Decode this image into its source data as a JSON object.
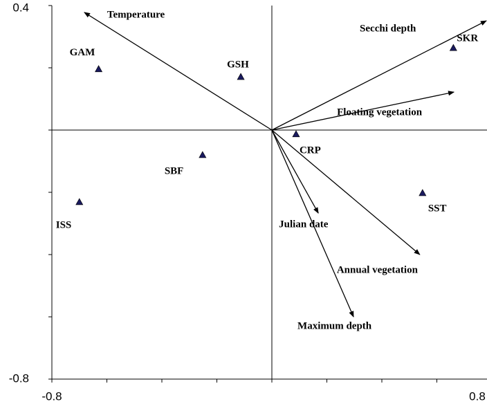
{
  "chart_data": {
    "type": "biplot",
    "xlim": [
      -0.8,
      0.8
    ],
    "ylim": [
      -0.8,
      0.4
    ],
    "xticks": [
      -0.8,
      0.8
    ],
    "yticks": [
      -0.8,
      0.4
    ],
    "points": {
      "labels": [
        "GAM",
        "GSH",
        "SKR",
        "CRP",
        "SBF",
        "SST",
        "ISS"
      ],
      "x": [
        -0.63,
        -0.113,
        0.66,
        0.088,
        -0.252,
        0.548,
        -0.7
      ],
      "y": [
        0.196,
        0.171,
        0.264,
        -0.013,
        -0.08,
        -0.202,
        -0.231
      ],
      "color": "#1a1a5e"
    },
    "arrows": {
      "labels": [
        "Temperature",
        "Secchi depth",
        "Floating vegetation",
        "Julian date",
        "Annual vegetation",
        "Maximum depth"
      ],
      "x": [
        -0.682,
        0.78,
        0.662,
        0.169,
        0.538,
        0.297
      ],
      "y": [
        0.378,
        0.351,
        0.122,
        -0.267,
        -0.4,
        -0.6
      ],
      "color": "#000000"
    }
  }
}
